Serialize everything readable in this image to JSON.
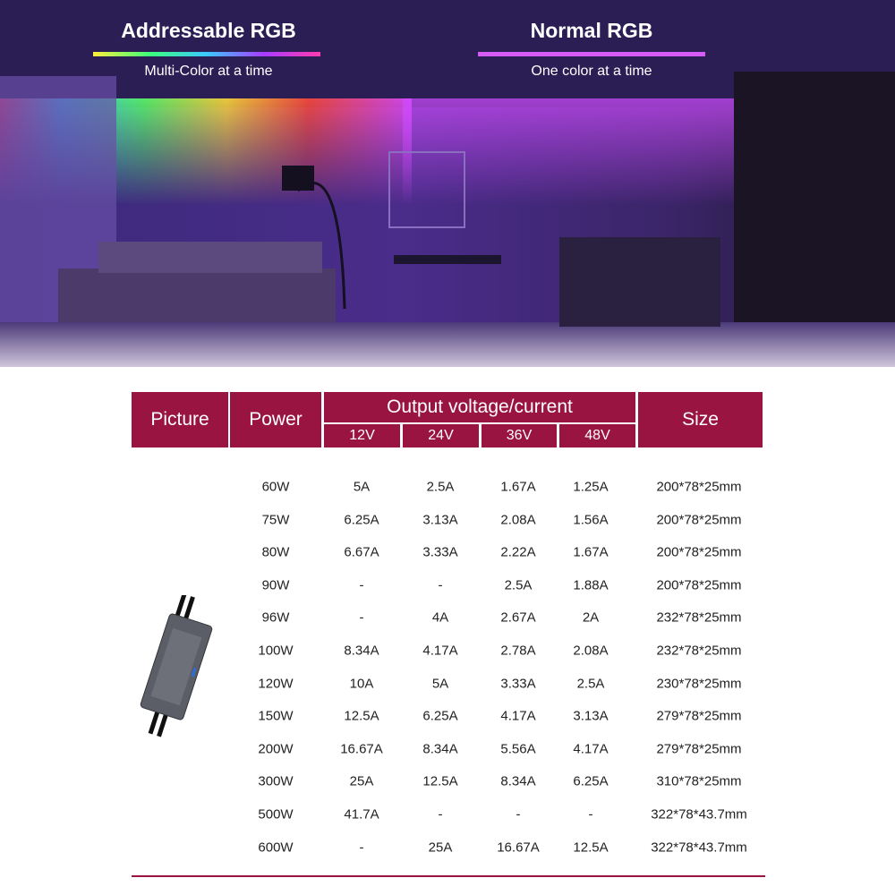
{
  "banner": {
    "left_title": "Addressable RGB",
    "left_subtitle": "Multi-Color at a time",
    "right_title": "Normal RGB",
    "right_subtitle": "One color at a time"
  },
  "table": {
    "header": {
      "picture": "Picture",
      "power": "Power",
      "output": "Output voltage/current",
      "voltages": [
        "12V",
        "24V",
        "36V",
        "48V"
      ],
      "size": "Size"
    },
    "rows": [
      [
        "60W",
        "5A",
        "2.5A",
        "1.67A",
        "1.25A",
        "200*78*25mm"
      ],
      [
        "75W",
        "6.25A",
        "3.13A",
        "2.08A",
        "1.56A",
        "200*78*25mm"
      ],
      [
        "80W",
        "6.67A",
        "3.33A",
        "2.22A",
        "1.67A",
        "200*78*25mm"
      ],
      [
        "90W",
        "-",
        "-",
        "2.5A",
        "1.88A",
        "200*78*25mm"
      ],
      [
        "96W",
        "-",
        "4A",
        "2.67A",
        "2A",
        "232*78*25mm"
      ],
      [
        "100W",
        "8.34A",
        "4.17A",
        "2.78A",
        "2.08A",
        "232*78*25mm"
      ],
      [
        "120W",
        "10A",
        "5A",
        "3.33A",
        "2.5A",
        "230*78*25mm"
      ],
      [
        "150W",
        "12.5A",
        "6.25A",
        "4.17A",
        "3.13A",
        "279*78*25mm"
      ],
      [
        "200W",
        "16.67A",
        "8.34A",
        "5.56A",
        "4.17A",
        "279*78*25mm"
      ],
      [
        "300W",
        "25A",
        "12.5A",
        "8.34A",
        "6.25A",
        "310*78*25mm"
      ],
      [
        "500W",
        "41.7A",
        "-",
        "-",
        "-",
        "322*78*43.7mm"
      ],
      [
        "600W",
        "-",
        "25A",
        "16.67A",
        "12.5A",
        "322*78*43.7mm"
      ]
    ]
  }
}
